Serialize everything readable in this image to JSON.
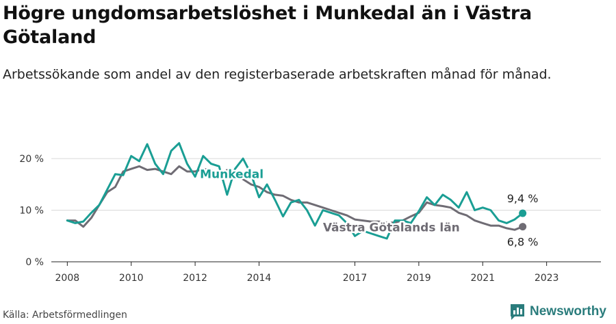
{
  "title": "Högre ungdomsarbetslöshet i Munkedal än i Västra Götaland",
  "subtitle": "Arbetssökande som andel av den registerbaserade arbetskraften månad för månad.",
  "source": "Källa: Arbetsförmedlingen",
  "brand": {
    "name": "Newsworthy",
    "icon": "newsworthy-logo-icon"
  },
  "colors": {
    "munkedal": "#1a9e94",
    "vastra": "#6f6c74",
    "grid": "#d9d9d9",
    "brand": "#2a7c7c"
  },
  "chart_data": {
    "type": "line",
    "x_start": 2008.0,
    "x_step": 0.25,
    "xlim": [
      2007.5,
      2024.7
    ],
    "ylim": [
      0,
      20
    ],
    "y_ticks": [
      0,
      10,
      20
    ],
    "y_tick_labels": [
      "0 %",
      "10 %",
      "20 %"
    ],
    "x_ticks": [
      2008,
      2010,
      2012,
      2014,
      2017,
      2019,
      2021,
      2023
    ],
    "x_tick_labels": [
      "2008",
      "2010",
      "2012",
      "2014",
      "2017",
      "2019",
      "2021",
      "2023"
    ],
    "grid": true,
    "series": [
      {
        "name": "Munkedal",
        "label": "Munkedal",
        "end_label": "9,4 %",
        "values": [
          8.0,
          7.5,
          7.8,
          9.5,
          11.0,
          14.0,
          17.0,
          16.8,
          20.5,
          19.5,
          22.8,
          19.0,
          17.0,
          21.5,
          23.0,
          19.0,
          16.5,
          20.5,
          19.0,
          18.5,
          13.0,
          18.0,
          20.0,
          17.0,
          12.5,
          15.0,
          12.0,
          8.8,
          11.5,
          12.0,
          10.0,
          7.0,
          10.0,
          9.5,
          9.0,
          7.5,
          5.0,
          6.0,
          5.5,
          5.0,
          4.5,
          8.0,
          8.0,
          7.5,
          9.8,
          12.5,
          11.0,
          13.0,
          12.0,
          10.5,
          13.5,
          10.0,
          10.5,
          10.0,
          8.0,
          7.5,
          8.2,
          9.4
        ]
      },
      {
        "name": "Västra Götalands län",
        "label": "Västra Götalands län",
        "end_label": "6,8 %",
        "values": [
          8.0,
          8.0,
          6.8,
          8.5,
          11.0,
          13.5,
          14.5,
          17.5,
          18.0,
          18.5,
          17.8,
          18.0,
          17.5,
          17.0,
          18.5,
          17.5,
          17.5,
          18.0,
          17.8,
          16.5,
          17.8,
          17.5,
          16.0,
          15.0,
          14.5,
          13.5,
          13.0,
          12.8,
          12.0,
          11.5,
          11.5,
          11.0,
          10.5,
          10.0,
          9.5,
          9.0,
          8.2,
          8.0,
          7.8,
          7.8,
          7.6,
          7.6,
          8.0,
          8.8,
          9.5,
          11.5,
          11.0,
          10.8,
          10.5,
          9.5,
          9.0,
          8.0,
          7.5,
          7.0,
          7.0,
          6.5,
          6.2,
          6.8
        ]
      }
    ]
  }
}
